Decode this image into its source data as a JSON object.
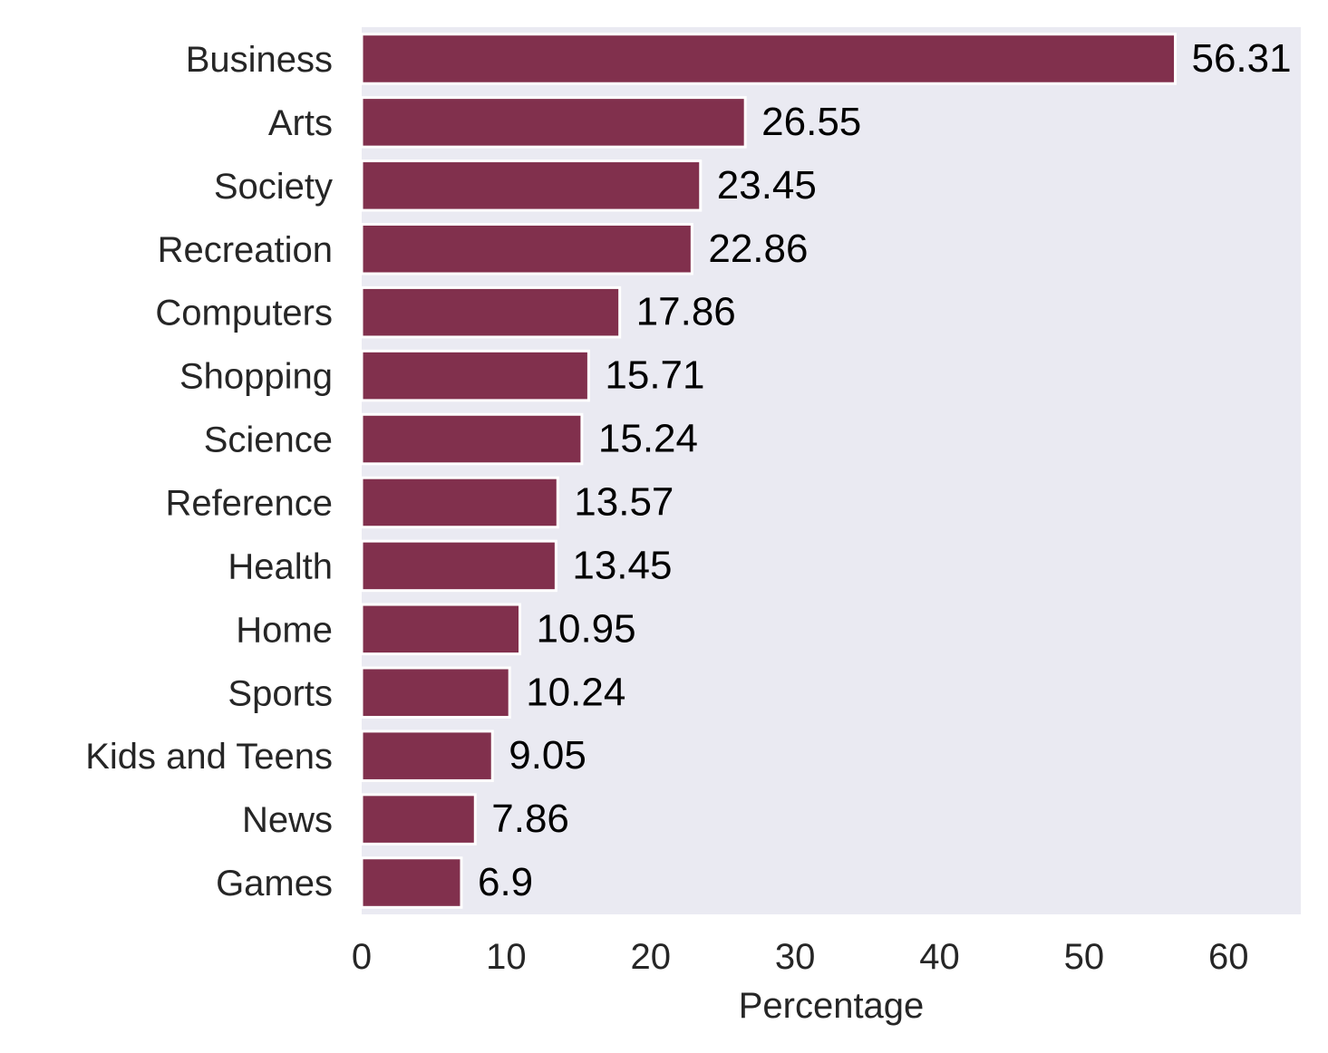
{
  "chart_data": {
    "type": "bar",
    "orientation": "horizontal",
    "categories": [
      "Business",
      "Arts",
      "Society",
      "Recreation",
      "Computers",
      "Shopping",
      "Science",
      "Reference",
      "Health",
      "Home",
      "Sports",
      "Kids and Teens",
      "News",
      "Games"
    ],
    "values": [
      56.31,
      26.55,
      23.45,
      22.86,
      17.86,
      15.71,
      15.24,
      13.57,
      13.45,
      10.95,
      10.24,
      9.05,
      7.86,
      6.9
    ],
    "value_labels": [
      "56.31",
      "26.55",
      "23.45",
      "22.86",
      "17.86",
      "15.71",
      "15.24",
      "13.57",
      "13.45",
      "10.95",
      "10.24",
      "9.05",
      "7.86",
      "6.9"
    ],
    "xlabel": "Percentage",
    "ylabel": "",
    "xlim": [
      0,
      65
    ],
    "xticks": [
      0,
      10,
      20,
      30,
      40,
      50,
      60
    ],
    "grid": false,
    "colors": {
      "bar": "#81304d",
      "background": "#eaeaf2",
      "bar_edge": "#ffffff"
    }
  }
}
